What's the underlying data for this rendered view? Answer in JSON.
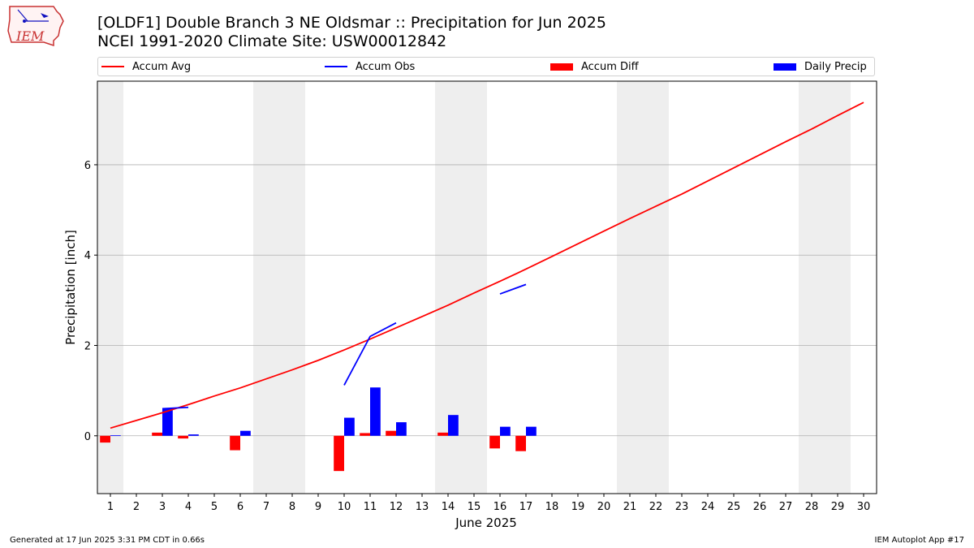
{
  "header": {
    "title": "[OLDF1] Double Branch 3 NE Oldsmar :: Precipitation for Jun 2025",
    "subtitle": "NCEI 1991-2020 Climate Site: USW00012842"
  },
  "logo": {
    "text": "IEM",
    "icon": "iem-logo-icon"
  },
  "footer": {
    "left": "Generated at 17 Jun 2025 3:31 PM CDT in 0.66s",
    "right": "IEM Autoplot App #17"
  },
  "colors": {
    "avg": "#ff0000",
    "obs": "#0000ff",
    "diff": "#ff0000",
    "daily": "#0000ff",
    "weekend": "#eeeeee",
    "grid": "#b0b0b0"
  },
  "chart_data": {
    "type": "bar+line",
    "xlabel": "June 2025",
    "ylabel": "Precipitation [inch]",
    "xlim": [
      0.5,
      30.5
    ],
    "ylim": [
      -1.28,
      7.85
    ],
    "yticks": [
      0,
      2,
      4,
      6
    ],
    "x": [
      1,
      2,
      3,
      4,
      5,
      6,
      7,
      8,
      9,
      10,
      11,
      12,
      13,
      14,
      15,
      16,
      17,
      18,
      19,
      20,
      21,
      22,
      23,
      24,
      25,
      26,
      27,
      28,
      29,
      30
    ],
    "xtick_labels": [
      "1",
      "2",
      "3",
      "4",
      "5",
      "6",
      "7",
      "8",
      "9",
      "10",
      "11",
      "12",
      "13",
      "14",
      "15",
      "16",
      "17",
      "18",
      "19",
      "20",
      "21",
      "22",
      "23",
      "24",
      "25",
      "26",
      "27",
      "28",
      "29",
      "30"
    ],
    "weekend_bands": [
      [
        0.5,
        1.5
      ],
      [
        6.5,
        8.5
      ],
      [
        13.5,
        15.5
      ],
      [
        20.5,
        22.5
      ],
      [
        27.5,
        29.5
      ]
    ],
    "legend": [
      "Accum Avg",
      "Accum Obs",
      "Accum Diff",
      "Daily Precip"
    ],
    "legend_placement": "top, spanning full width",
    "grid": "horizontal",
    "series": [
      {
        "name": "Accum Avg",
        "kind": "line",
        "values": [
          0.17,
          0.34,
          0.51,
          0.69,
          0.88,
          1.06,
          1.26,
          1.46,
          1.67,
          1.9,
          2.14,
          2.39,
          2.64,
          2.89,
          3.16,
          3.42,
          3.69,
          3.97,
          4.25,
          4.53,
          4.81,
          5.08,
          5.35,
          5.64,
          5.93,
          6.22,
          6.51,
          6.79,
          7.09,
          7.38
        ]
      },
      {
        "name": "Accum Obs",
        "kind": "line",
        "values": [
          null,
          null,
          0.6,
          0.63,
          null,
          null,
          null,
          null,
          null,
          1.12,
          2.2,
          2.5,
          null,
          null,
          null,
          3.14,
          3.35,
          null,
          null,
          null,
          null,
          null,
          null,
          null,
          null,
          null,
          null,
          null,
          null,
          null
        ]
      },
      {
        "name": "Accum Diff",
        "kind": "bar",
        "values": [
          -0.15,
          null,
          0.07,
          -0.06,
          null,
          -0.32,
          null,
          null,
          null,
          -0.78,
          0.06,
          0.11,
          null,
          0.07,
          null,
          -0.28,
          -0.34,
          null,
          null,
          null,
          null,
          null,
          null,
          null,
          null,
          null,
          null,
          null,
          null,
          null
        ]
      },
      {
        "name": "Daily Precip",
        "kind": "bar",
        "values": [
          0.01,
          null,
          0.6,
          0.03,
          null,
          0.11,
          null,
          null,
          null,
          0.4,
          1.07,
          0.3,
          null,
          0.46,
          null,
          0.2,
          0.2,
          null,
          null,
          null,
          null,
          null,
          null,
          null,
          null,
          null,
          null,
          null,
          null,
          null
        ]
      }
    ]
  }
}
